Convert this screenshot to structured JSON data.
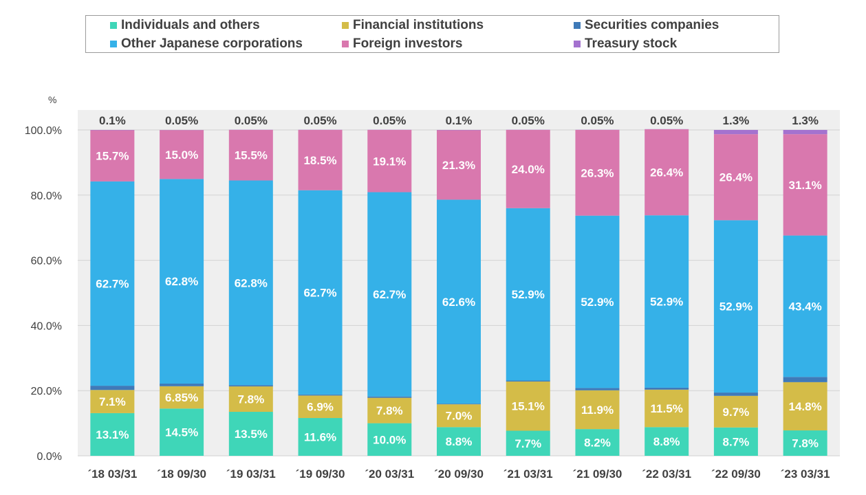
{
  "chart_data": {
    "type": "bar",
    "stacked": true,
    "y_unit": "%",
    "ylim": [
      0,
      100
    ],
    "y_ticks": [
      "0.0%",
      "20.0%",
      "40.0%",
      "60.0%",
      "80.0%",
      "100.0%"
    ],
    "categories": [
      "´18 03/31",
      "´18 09/30",
      "´19 03/31",
      "´19 09/30",
      "´20 03/31",
      "´20 09/30",
      "´21 03/31",
      "´21 09/30",
      "´22 03/31",
      "´22 09/30",
      "´23 03/31"
    ],
    "legend_position": "top",
    "grid": true,
    "series": [
      {
        "name": "Individuals and others",
        "color": "#3fd6b8",
        "values": [
          13.1,
          14.5,
          13.5,
          11.6,
          10.0,
          8.8,
          7.7,
          8.2,
          8.8,
          8.7,
          7.8
        ],
        "labels": [
          "13.1%",
          "14.5%",
          "13.5%",
          "11.6%",
          "10.0%",
          "8.8%",
          "7.7%",
          "8.2%",
          "8.8%",
          "8.7%",
          "7.8%"
        ]
      },
      {
        "name": "Financial institutions",
        "color": "#d4bc48",
        "values": [
          7.1,
          6.85,
          7.8,
          6.9,
          7.8,
          7.0,
          15.1,
          11.9,
          11.5,
          9.7,
          14.8
        ],
        "labels": [
          "7.1%",
          "6.85%",
          "7.8%",
          "6.9%",
          "7.8%",
          "7.0%",
          "15.1%",
          "11.9%",
          "11.5%",
          "9.7%",
          "14.8%"
        ]
      },
      {
        "name": "Securities companies",
        "color": "#3f7ab8",
        "values": [
          1.3,
          0.8,
          0.4,
          0.3,
          0.4,
          0.2,
          0.3,
          0.7,
          0.6,
          1.0,
          1.6
        ],
        "labels": [
          "1.3%",
          "0.8%",
          "0.4%",
          "0.3%",
          "0.4%",
          "0.2%",
          "0.3%",
          "0.7%",
          "0.6%",
          "1.0%",
          "1.6%"
        ]
      },
      {
        "name": "Other Japanese corporations",
        "color": "#35b1e8",
        "values": [
          62.7,
          62.8,
          62.8,
          62.7,
          62.7,
          62.6,
          52.9,
          52.9,
          52.9,
          52.9,
          43.4
        ],
        "labels": [
          "62.7%",
          "62.8%",
          "62.8%",
          "62.7%",
          "62.7%",
          "62.6%",
          "52.9%",
          "52.9%",
          "52.9%",
          "52.9%",
          "43.4%"
        ]
      },
      {
        "name": "Foreign investors",
        "color": "#d978ae",
        "values": [
          15.7,
          15.0,
          15.5,
          18.5,
          19.1,
          21.3,
          24.0,
          26.3,
          26.4,
          26.4,
          31.1
        ],
        "labels": [
          "15.7%",
          "15.0%",
          "15.5%",
          "18.5%",
          "19.1%",
          "21.3%",
          "24.0%",
          "26.3%",
          "26.4%",
          "26.4%",
          "31.1%"
        ]
      },
      {
        "name": "Treasury stock",
        "color": "#a472cf",
        "values": [
          0.1,
          0.05,
          0.05,
          0.05,
          0.05,
          0.1,
          0.05,
          0.05,
          0.05,
          1.3,
          1.3
        ],
        "labels": [
          "0.1%",
          "0.05%",
          "0.05%",
          "0.05%",
          "0.05%",
          "0.1%",
          "0.05%",
          "0.05%",
          "0.05%",
          "1.3%",
          "1.3%"
        ]
      }
    ]
  }
}
